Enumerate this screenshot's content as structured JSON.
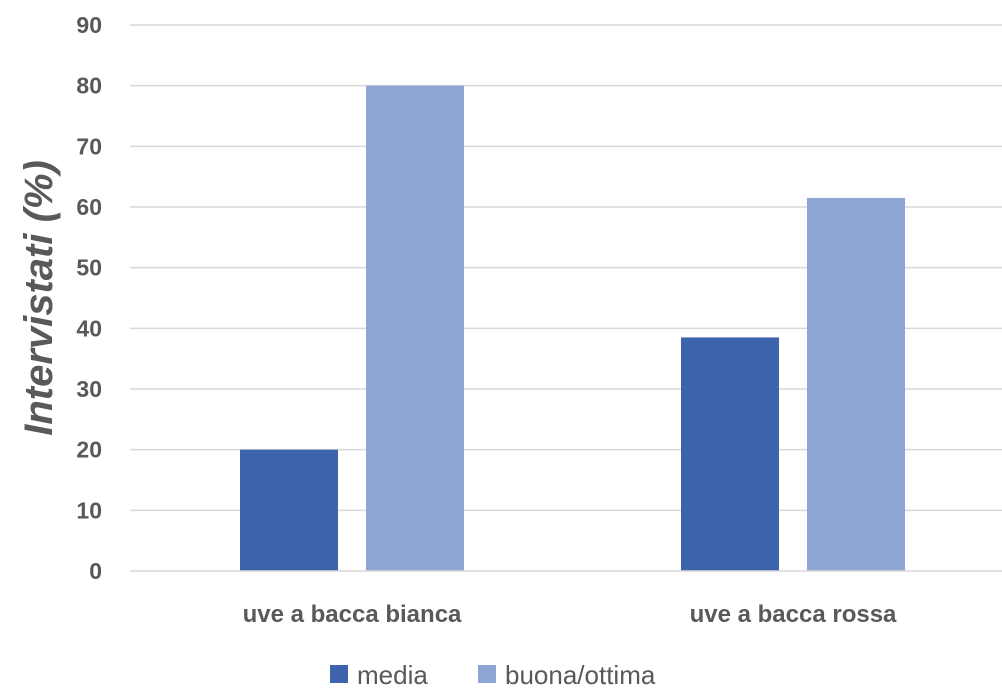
{
  "chart_data": {
    "type": "bar",
    "title": "",
    "xlabel": "",
    "ylabel": "Intervistati (%)",
    "ylim": [
      0,
      90
    ],
    "yticks": [
      0,
      10,
      20,
      30,
      40,
      50,
      60,
      70,
      80,
      90
    ],
    "ytick_labels": [
      "0",
      "10",
      "20",
      "30",
      "40",
      "50",
      "60",
      "70",
      "80",
      "90"
    ],
    "categories": [
      "uve a bacca bianca",
      "uve a bacca rossa"
    ],
    "series": [
      {
        "name": "media",
        "values": [
          20,
          38.5
        ],
        "color": "#3c63ac"
      },
      {
        "name": "buona/ottima",
        "values": [
          80,
          61.5
        ],
        "color": "#8fa5d4"
      }
    ],
    "grid": true,
    "legend": "bottom"
  }
}
